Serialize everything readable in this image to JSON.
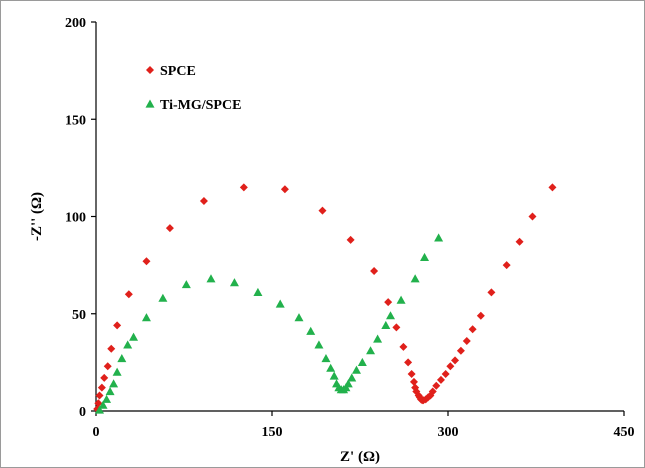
{
  "chart_data": {
    "type": "scatter",
    "title": "",
    "xlabel": "Z' (Ω)",
    "ylabel": "-Z'' (Ω)",
    "xlim": [
      0,
      450
    ],
    "ylim": [
      0,
      200
    ],
    "xticks": [
      0,
      150,
      300,
      450
    ],
    "yticks": [
      0,
      50,
      100,
      150,
      200
    ],
    "grid": false,
    "legend_position": "top-left",
    "series": [
      {
        "name": "SPCE",
        "color": "#e0201b",
        "marker": "diamond",
        "points": [
          [
            1,
            1
          ],
          [
            2,
            4
          ],
          [
            3,
            8
          ],
          [
            5,
            12
          ],
          [
            7,
            17
          ],
          [
            10,
            23
          ],
          [
            13,
            32
          ],
          [
            18,
            44
          ],
          [
            28,
            60
          ],
          [
            43,
            77
          ],
          [
            63,
            94
          ],
          [
            92,
            108
          ],
          [
            126,
            115
          ],
          [
            161,
            114
          ],
          [
            193,
            103
          ],
          [
            217,
            88
          ],
          [
            237,
            72
          ],
          [
            249,
            56
          ],
          [
            256,
            43
          ],
          [
            262,
            33
          ],
          [
            266,
            25
          ],
          [
            269,
            19
          ],
          [
            271,
            15
          ],
          [
            272,
            12
          ],
          [
            273,
            10
          ],
          [
            275,
            8
          ],
          [
            276,
            7
          ],
          [
            277,
            6
          ],
          [
            278,
            5.5
          ],
          [
            279,
            5.5
          ],
          [
            281,
            6
          ],
          [
            283,
            7
          ],
          [
            285,
            8
          ],
          [
            287,
            10
          ],
          [
            290,
            13
          ],
          [
            294,
            16
          ],
          [
            298,
            19
          ],
          [
            302,
            23
          ],
          [
            306,
            26
          ],
          [
            311,
            31
          ],
          [
            316,
            36
          ],
          [
            321,
            42
          ],
          [
            328,
            49
          ],
          [
            337,
            61
          ],
          [
            350,
            75
          ],
          [
            361,
            87
          ],
          [
            372,
            100
          ],
          [
            389,
            115
          ]
        ]
      },
      {
        "name": "Ti-MG/SPCE",
        "color": "#22b14c",
        "marker": "triangle",
        "points": [
          [
            3,
            0.5
          ],
          [
            6,
            3
          ],
          [
            9,
            6
          ],
          [
            12,
            10
          ],
          [
            15,
            14
          ],
          [
            18,
            20
          ],
          [
            22,
            27
          ],
          [
            27,
            34
          ],
          [
            32,
            38
          ],
          [
            43,
            48
          ],
          [
            57,
            58
          ],
          [
            77,
            65
          ],
          [
            98,
            68
          ],
          [
            118,
            66
          ],
          [
            138,
            61
          ],
          [
            157,
            55
          ],
          [
            173,
            48
          ],
          [
            183,
            41
          ],
          [
            190,
            34
          ],
          [
            196,
            27
          ],
          [
            200,
            22
          ],
          [
            203,
            18
          ],
          [
            205,
            14
          ],
          [
            207,
            12
          ],
          [
            209,
            11
          ],
          [
            211,
            11
          ],
          [
            213,
            12
          ],
          [
            215,
            14
          ],
          [
            218,
            17
          ],
          [
            222,
            21
          ],
          [
            227,
            25
          ],
          [
            234,
            31
          ],
          [
            240,
            37
          ],
          [
            247,
            44
          ],
          [
            251,
            49
          ],
          [
            260,
            57
          ],
          [
            272,
            68
          ],
          [
            280,
            79
          ],
          [
            292,
            89
          ]
        ]
      }
    ]
  }
}
